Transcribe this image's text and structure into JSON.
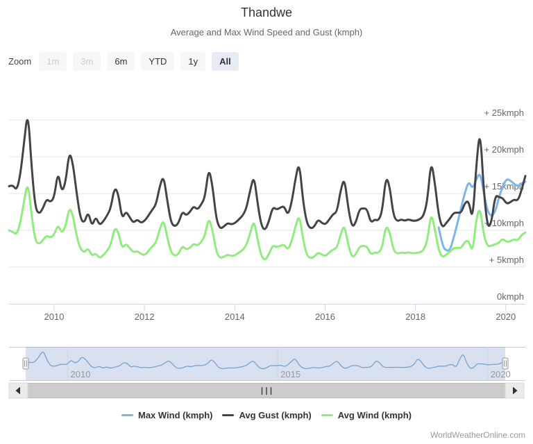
{
  "chart_data": {
    "type": "line",
    "title": "Thandwe",
    "subtitle": "Average and Max Wind Speed and Gust (kmph)",
    "x_unit": "month",
    "x_start": "2009-01",
    "x_end": "2020-06",
    "x_axis": {
      "tick_years": [
        2010,
        2012,
        2014,
        2016,
        2018,
        2020
      ]
    },
    "y_axis": {
      "position": "right",
      "grid": true,
      "range": [
        0,
        27
      ],
      "tick_values": [
        0,
        5,
        10,
        15,
        20,
        25
      ],
      "tick_labels": [
        "0kmph",
        "+ 5kmph",
        "+ 10kmph",
        "+ 15kmph",
        "+ 20kmph",
        "+ 25kmph"
      ]
    },
    "series": [
      {
        "name": "Max Wind (kmph)",
        "color": "#7cb5ec",
        "start": "2018-07",
        "values": [
          10.4,
          7.9,
          7.2,
          7.3,
          9.0,
          11.0,
          13.2,
          15.2,
          16.7,
          15.6,
          17.0,
          17.9,
          15.0,
          12.5,
          11.9,
          12.5,
          14.5,
          16.0,
          17.0,
          16.8,
          16.3,
          16.0,
          16.4,
          16.6
        ]
      },
      {
        "name": "Avg Gust (kmph)",
        "color": "#434348",
        "start": "2009-01",
        "values": [
          16.0,
          16.2,
          15.4,
          17.5,
          22.0,
          26.4,
          18.5,
          13.0,
          12.2,
          13.0,
          14.3,
          13.8,
          14.5,
          18.1,
          15.1,
          16.5,
          20.8,
          19.0,
          14.8,
          11.5,
          11.0,
          12.6,
          10.5,
          11.9,
          10.7,
          11.2,
          12.0,
          13.0,
          15.9,
          15.0,
          11.5,
          12.6,
          11.8,
          11.0,
          11.5,
          11.0,
          11.3,
          12.0,
          12.8,
          13.5,
          16.0,
          17.5,
          14.0,
          11.0,
          10.5,
          11.0,
          12.6,
          12.0,
          12.5,
          13.3,
          12.8,
          13.5,
          14.5,
          18.6,
          16.0,
          11.5,
          10.2,
          10.5,
          11.0,
          10.8,
          11.0,
          11.5,
          12.0,
          13.0,
          15.5,
          17.5,
          13.5,
          10.5,
          10.0,
          11.3,
          13.2,
          12.8,
          13.1,
          13.3,
          12.0,
          13.8,
          17.0,
          19.4,
          14.0,
          11.0,
          10.2,
          10.5,
          11.5,
          11.0,
          10.8,
          11.5,
          12.2,
          12.5,
          15.5,
          17.2,
          13.0,
          10.4,
          11.0,
          12.9,
          13.0,
          12.9,
          11.0,
          11.5,
          11.3,
          12.5,
          17.4,
          16.0,
          12.0,
          11.2,
          11.5,
          11.3,
          11.5,
          11.3,
          11.3,
          11.5,
          12.0,
          14.0,
          19.6,
          16.4,
          12.0,
          10.3,
          11.0,
          11.6,
          12.4,
          12.4,
          12.4,
          13.8,
          14.0,
          11.2,
          19.0,
          24.0,
          15.0,
          10.3,
          11.0,
          14.8,
          14.5,
          14.4,
          13.6,
          13.8,
          14.2,
          14.0,
          15.5,
          17.4
        ]
      },
      {
        "name": "Avg Wind (kmph)",
        "color": "#90ed7d",
        "start": "2009-01",
        "values": [
          10.0,
          9.8,
          9.4,
          11.0,
          14.0,
          16.7,
          12.0,
          8.5,
          8.1,
          8.7,
          9.3,
          9.0,
          9.4,
          10.8,
          9.6,
          10.5,
          13.2,
          12.0,
          9.0,
          7.4,
          7.0,
          7.6,
          6.5,
          6.9,
          6.2,
          6.6,
          7.2,
          8.0,
          10.4,
          9.8,
          7.5,
          8.2,
          7.6,
          7.0,
          7.2,
          6.8,
          6.6,
          7.2,
          7.8,
          8.3,
          10.2,
          11.5,
          9.0,
          7.0,
          6.5,
          6.8,
          7.9,
          7.4,
          7.6,
          8.2,
          7.9,
          8.4,
          9.3,
          11.8,
          10.0,
          7.0,
          6.2,
          6.4,
          6.7,
          6.5,
          6.6,
          7.0,
          7.3,
          8.0,
          9.6,
          11.5,
          8.6,
          6.4,
          5.9,
          6.8,
          8.0,
          7.7,
          7.9,
          8.1,
          7.3,
          8.5,
          10.5,
          12.2,
          8.8,
          6.6,
          6.2,
          6.4,
          7.0,
          6.7,
          6.5,
          7.0,
          7.4,
          7.6,
          9.5,
          10.8,
          8.0,
          6.3,
          6.7,
          7.8,
          7.9,
          7.8,
          6.7,
          7.0,
          6.9,
          7.6,
          10.7,
          9.8,
          7.3,
          6.8,
          7.0,
          6.9,
          7.0,
          6.9,
          6.9,
          7.0,
          7.3,
          8.6,
          12.5,
          10.1,
          7.3,
          6.3,
          6.7,
          7.1,
          7.6,
          7.6,
          7.6,
          8.5,
          8.6,
          6.9,
          11.7,
          13.2,
          9.2,
          7.8,
          7.9,
          8.1,
          8.3,
          8.9,
          8.4,
          8.5,
          8.8,
          8.6,
          9.4,
          9.7
        ]
      }
    ]
  },
  "range_selector": {
    "label": "Zoom",
    "buttons": [
      {
        "label": "1m",
        "state": "disabled"
      },
      {
        "label": "3m",
        "state": "disabled"
      },
      {
        "label": "6m",
        "state": "normal"
      },
      {
        "label": "YTD",
        "state": "normal"
      },
      {
        "label": "1y",
        "state": "normal"
      },
      {
        "label": "All",
        "state": "selected"
      }
    ]
  },
  "navigator": {
    "year_labels": [
      2010,
      2015,
      2020
    ]
  },
  "scrollbar": {
    "grip": "|||"
  },
  "legend": {
    "items": [
      {
        "label": "Max Wind (kmph)",
        "color": "#7cb5ec"
      },
      {
        "label": "Avg Gust (kmph)",
        "color": "#434348"
      },
      {
        "label": "Avg Wind (kmph)",
        "color": "#90ed7d"
      }
    ]
  },
  "credits": "WorldWeatherOnline.com",
  "colors": {
    "accent_selected": "#e6ebf5",
    "button_bg": "#f7f7f7",
    "grid": "#e6e6e6",
    "axis_line": "#ccd6eb",
    "axis_label": "#666666",
    "navigator_mask": "rgba(102,133,194,0.25)",
    "navigator_line": "#6d9ecf",
    "scrollbar_track": "#f2f2f2",
    "scrollbar_bar": "#cccccc"
  }
}
